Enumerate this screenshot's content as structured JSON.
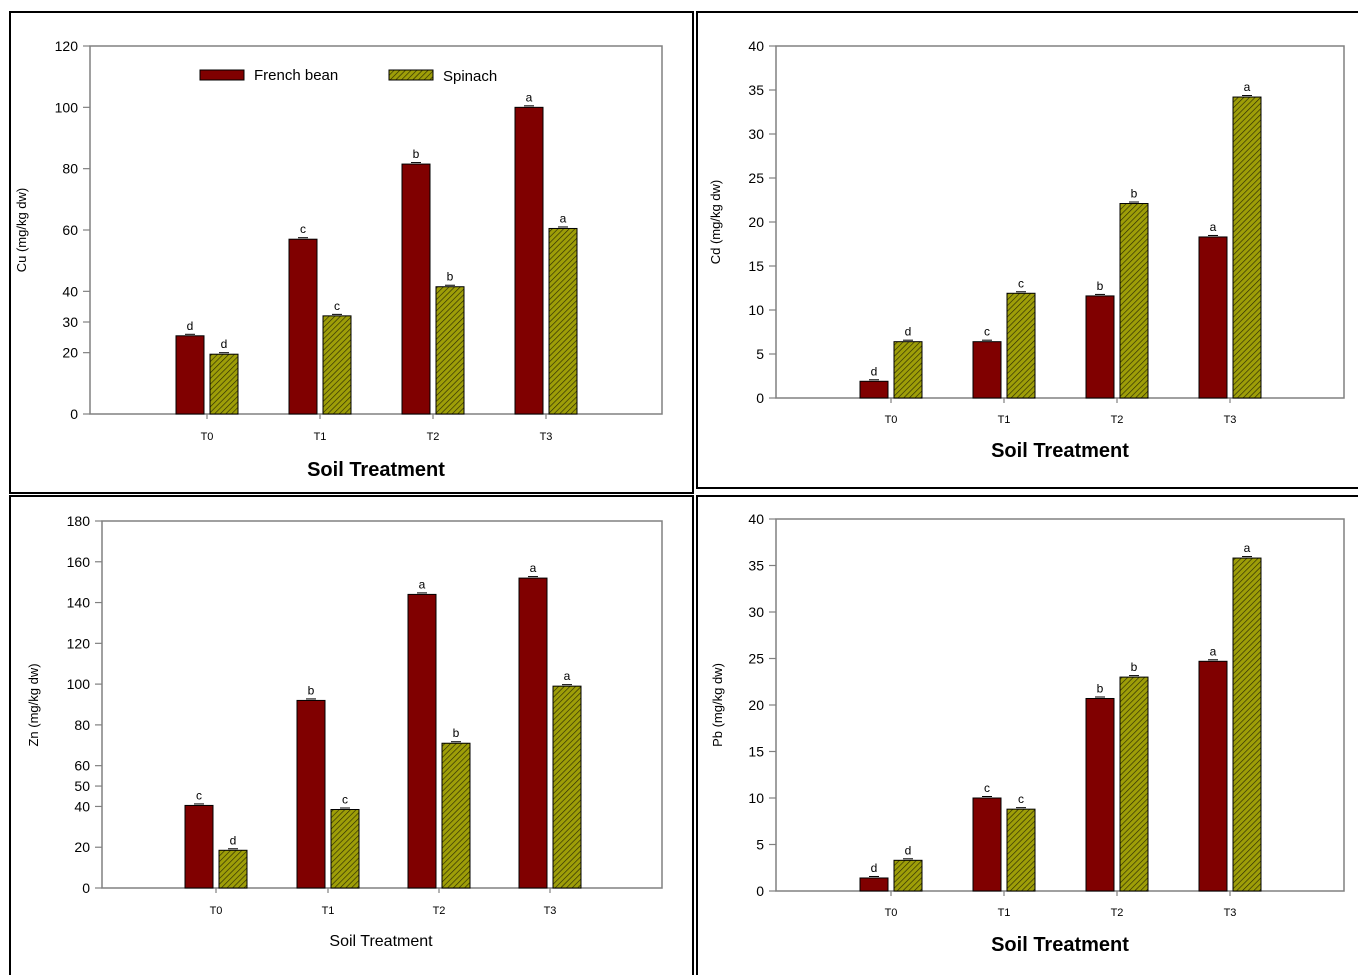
{
  "colors": {
    "french_bean": "#800000",
    "spinach": "#9e9e08",
    "spinach_hatch": "#2a2a04",
    "axis": "#808080",
    "frame": "#000000"
  },
  "legend": {
    "items": [
      "French bean",
      "Spinach"
    ],
    "placement": "top-left"
  },
  "chart_data": [
    {
      "type": "bar",
      "categories": [
        "T0",
        "T1",
        "T2",
        "T3"
      ],
      "series": [
        {
          "name": "French bean",
          "values": [
            25.5,
            57,
            81.5,
            100
          ],
          "labels": [
            "d",
            "c",
            "b",
            "a"
          ]
        },
        {
          "name": "Spinach",
          "values": [
            19.5,
            32,
            41.5,
            60.5
          ],
          "labels": [
            "d",
            "c",
            "b",
            "a"
          ]
        }
      ],
      "xlabel": "Soil Treatment",
      "ylabel": "Cu (mg/kg dw)",
      "ylim": [
        0,
        120
      ],
      "yticks": [
        0,
        20,
        30,
        40,
        60,
        80,
        100,
        120
      ],
      "legend": true,
      "xlabel_bold": true
    },
    {
      "type": "bar",
      "categories": [
        "T0",
        "T1",
        "T2",
        "T3"
      ],
      "series": [
        {
          "name": "French bean",
          "values": [
            1.9,
            6.4,
            11.6,
            18.3
          ],
          "labels": [
            "d",
            "c",
            "b",
            "a"
          ]
        },
        {
          "name": "Spinach",
          "values": [
            6.4,
            11.9,
            22.1,
            34.2
          ],
          "labels": [
            "d",
            "c",
            "b",
            "a"
          ]
        }
      ],
      "xlabel": "Soil Treatment",
      "ylabel": "Cd (mg/kg dw)",
      "ylim": [
        0,
        40
      ],
      "yticks": [
        0,
        5,
        10,
        15,
        20,
        25,
        30,
        35,
        40
      ],
      "legend": false,
      "xlabel_bold": true
    },
    {
      "type": "bar",
      "categories": [
        "T0",
        "T1",
        "T2",
        "T3"
      ],
      "series": [
        {
          "name": "French bean",
          "values": [
            40.5,
            92,
            144,
            152
          ],
          "labels": [
            "c",
            "b",
            "a",
            "a"
          ]
        },
        {
          "name": "Spinach",
          "values": [
            18.5,
            38.5,
            71,
            99
          ],
          "labels": [
            "d",
            "c",
            "b",
            "a"
          ]
        }
      ],
      "xlabel": "Soil Treatment",
      "ylabel": "Zn (mg/kg dw)",
      "ylim": [
        0,
        180
      ],
      "yticks": [
        0,
        20,
        40,
        50,
        60,
        80,
        100,
        120,
        140,
        160,
        180
      ],
      "legend": false,
      "xlabel_bold": false
    },
    {
      "type": "bar",
      "categories": [
        "T0",
        "T1",
        "T2",
        "T3"
      ],
      "series": [
        {
          "name": "French bean",
          "values": [
            1.4,
            10,
            20.7,
            24.7
          ],
          "labels": [
            "d",
            "c",
            "b",
            "a"
          ]
        },
        {
          "name": "Spinach",
          "values": [
            3.3,
            8.8,
            23,
            35.8
          ],
          "labels": [
            "d",
            "c",
            "b",
            "a"
          ]
        }
      ],
      "xlabel": "Soil Treatment",
      "ylabel": "Pb (mg/kg dw)",
      "ylim": [
        0,
        40
      ],
      "yticks": [
        0,
        5,
        10,
        15,
        20,
        25,
        30,
        35,
        40
      ],
      "legend": false,
      "xlabel_bold": true
    }
  ]
}
